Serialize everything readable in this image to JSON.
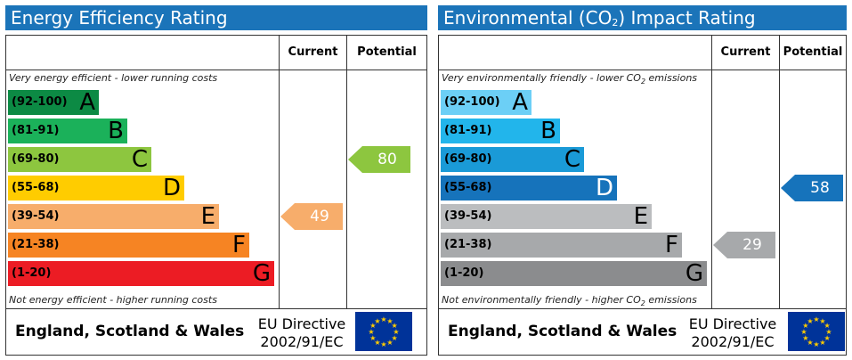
{
  "chart_data": [
    {
      "type": "bar",
      "title": "Energy Efficiency Rating",
      "columns": [
        "Current",
        "Potential"
      ],
      "top_note": "Very energy efficient - lower running costs",
      "bottom_note": "Not energy efficient - higher running costs",
      "bands": [
        {
          "range": "(92-100)",
          "letter": "A",
          "color": "#0c8a44"
        },
        {
          "range": "(81-91)",
          "letter": "B",
          "color": "#1bb15a"
        },
        {
          "range": "(69-80)",
          "letter": "C",
          "color": "#8dc63f"
        },
        {
          "range": "(55-68)",
          "letter": "D",
          "color": "#ffcc00"
        },
        {
          "range": "(39-54)",
          "letter": "E",
          "color": "#f7ad6b"
        },
        {
          "range": "(21-38)",
          "letter": "F",
          "color": "#f68423"
        },
        {
          "range": "(1-20)",
          "letter": "G",
          "color": "#ec1c24"
        }
      ],
      "current": {
        "value": 49,
        "label": "49",
        "band": "E",
        "color": "#f7ad6b"
      },
      "potential": {
        "value": 80,
        "label": "80",
        "band": "C",
        "color": "#8dc63f"
      },
      "footer": {
        "region": "England, Scotland & Wales",
        "directive_line1": "EU Directive",
        "directive_line2": "2002/91/EC"
      }
    },
    {
      "type": "bar",
      "title_prefix": "Environmental (CO",
      "title_sub": "2",
      "title_suffix": ") Impact Rating",
      "columns": [
        "Current",
        "Potential"
      ],
      "top_note_prefix": "Very environmentally friendly - lower CO",
      "top_note_sub": "2",
      "top_note_suffix": " emissions",
      "bottom_note_prefix": "Not environmentally friendly - higher CO",
      "bottom_note_sub": "2",
      "bottom_note_suffix": " emissions",
      "bands": [
        {
          "range": "(92-100)",
          "letter": "A",
          "color": "#6ccff6"
        },
        {
          "range": "(81-91)",
          "letter": "B",
          "color": "#22b5eb"
        },
        {
          "range": "(69-80)",
          "letter": "C",
          "color": "#1a9ad7"
        },
        {
          "range": "(55-68)",
          "letter": "D",
          "color": "#1673bb"
        },
        {
          "range": "(39-54)",
          "letter": "E",
          "color": "#bbbdbf"
        },
        {
          "range": "(21-38)",
          "letter": "F",
          "color": "#a7a9ab"
        },
        {
          "range": "(1-20)",
          "letter": "G",
          "color": "#8b8c8e"
        }
      ],
      "current": {
        "value": 29,
        "label": "29",
        "band": "F",
        "color": "#a7a9ab"
      },
      "potential": {
        "value": 58,
        "label": "58",
        "band": "D",
        "color": "#1673bb"
      },
      "footer": {
        "region": "England, Scotland & Wales",
        "directive_line1": "EU Directive",
        "directive_line2": "2002/91/EC"
      }
    }
  ]
}
